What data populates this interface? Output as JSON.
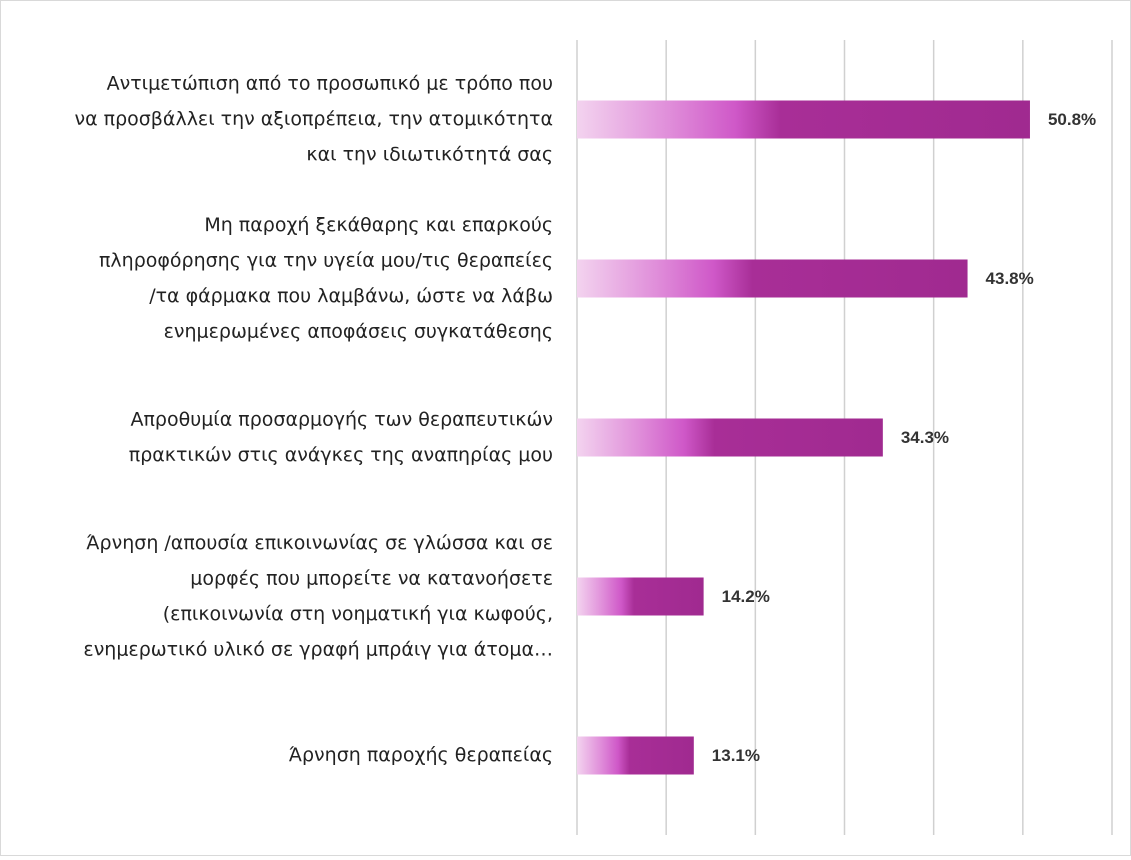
{
  "chart_data": {
    "type": "bar",
    "orientation": "horizontal",
    "categories": [
      [
        "Αντιμετώπιση  από το προσωπικό με τρόπο που",
        "να προσβάλλει την αξιοπρέπεια, την ατομικότητα",
        "και την ιδιωτικότητά σας"
      ],
      [
        "Μη παροχή ξεκάθαρης και επαρκούς",
        "πληροφόρησης για την υγεία μου/τις θεραπείες",
        "/τα φάρμακα που λαμβάνω, ώστε να λάβω",
        "ενημερωμένες αποφάσεις συγκατάθεσης"
      ],
      [
        "Απροθυμία προσαρμογής των θεραπευτικών",
        "πρακτικών στις ανάγκες της αναπηρίας μου"
      ],
      [
        "Άρνηση /απουσία επικοινωνίας σε γλώσσα και σε",
        "μορφές που μπορείτε να κατανοήσετε",
        "(επικοινωνία στη νοηματική για κωφούς,",
        "ενημερωτικό υλικό σε γραφή μπράιγ για άτομα…"
      ],
      [
        "Άρνηση παροχής θεραπείας"
      ]
    ],
    "values": [
      50.8,
      43.8,
      34.3,
      14.2,
      13.1
    ],
    "value_labels": [
      "50.8%",
      "43.8%",
      "34.3%",
      "14.2%",
      "13.1%"
    ],
    "color": "#a02a90",
    "xlim": [
      0,
      60
    ],
    "xticks": [
      0,
      10,
      20,
      30,
      40,
      50,
      60
    ],
    "grid": true
  }
}
